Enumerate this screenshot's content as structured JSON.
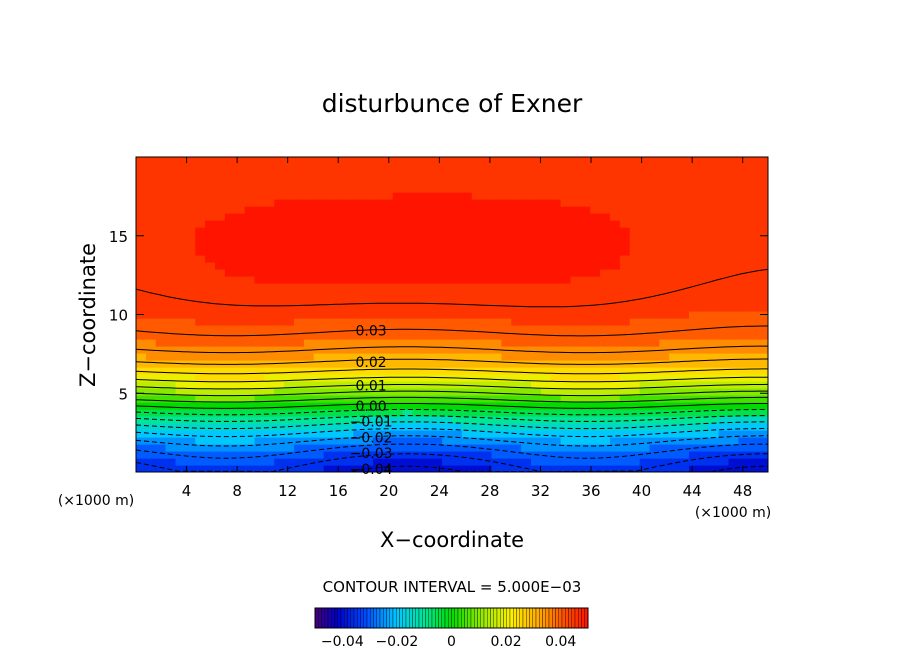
{
  "chart_data": {
    "type": "heatmap",
    "title": "disturbunce of Exner",
    "xlabel": "X−coordinate",
    "ylabel": "Z−coordinate",
    "x_unit": "(×1000 m)",
    "y_unit": "(×1000 m)",
    "xlim": [
      0,
      50
    ],
    "ylim": [
      0,
      20
    ],
    "x_ticks": [
      4,
      8,
      12,
      16,
      20,
      24,
      28,
      32,
      36,
      40,
      44,
      48
    ],
    "y_ticks": [
      5,
      10,
      15
    ],
    "contour_interval_label": "CONTOUR INTERVAL = 5.000E−03",
    "contour_labels": [
      {
        "text": "0.03",
        "x": 18.6,
        "z": 9.0
      },
      {
        "text": "0.02",
        "x": 18.6,
        "z": 7.0
      },
      {
        "text": "0.01",
        "x": 18.6,
        "z": 5.5
      },
      {
        "text": "0.00",
        "x": 18.6,
        "z": 4.2
      },
      {
        "text": "−0.01",
        "x": 18.6,
        "z": 3.2
      },
      {
        "text": "−0.02",
        "x": 18.6,
        "z": 2.2
      },
      {
        "text": "−0.03",
        "x": 18.6,
        "z": 1.2
      },
      {
        "text": "−0.04",
        "x": 18.6,
        "z": 0.2
      }
    ],
    "colorbar": {
      "range": [
        -0.05,
        0.05
      ],
      "tick_labels": [
        "−0.04",
        "−0.02",
        "0",
        "0.02",
        "0.04"
      ],
      "tick_values": [
        -0.04,
        -0.02,
        0,
        0.02,
        0.04
      ]
    },
    "colormap": "rainbow (blue = negative, red = positive)",
    "grid": false
  }
}
